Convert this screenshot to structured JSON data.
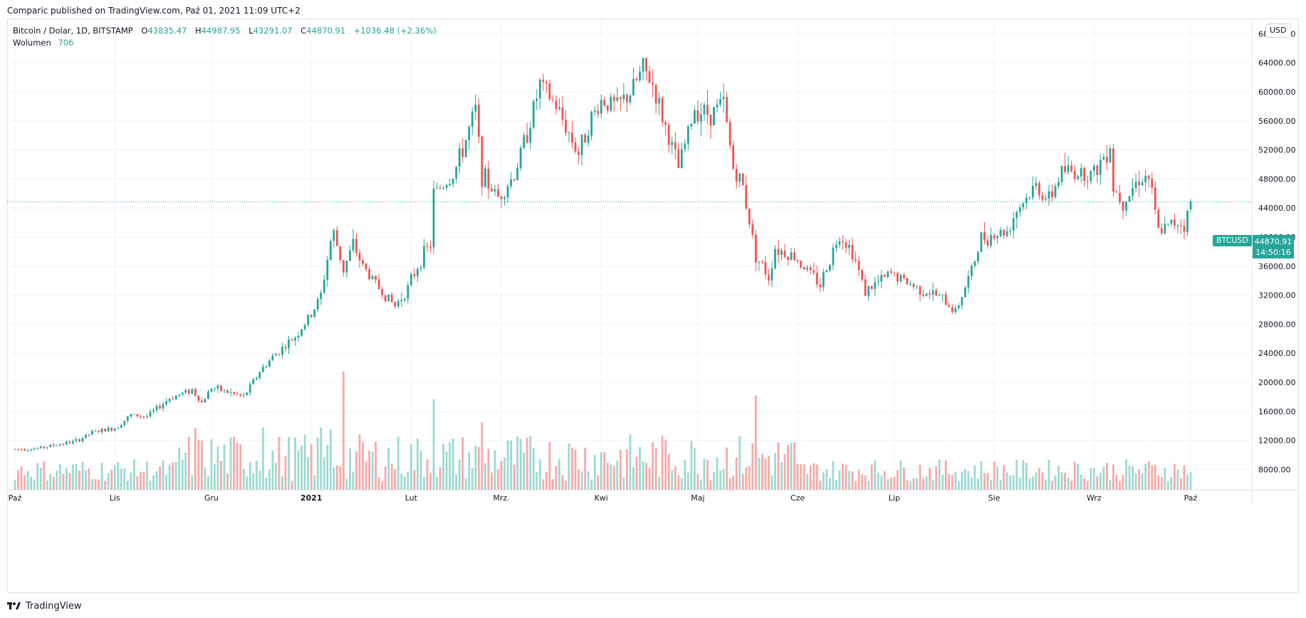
{
  "header": {
    "published": "Comparic published on TradingView.com, Paź 01, 2021 11:09 UTC+2"
  },
  "legend": {
    "symbol": "Bitcoin / Dolar, 1D, BITSTAMP",
    "o_label": "O",
    "o_value": "43835.47",
    "h_label": "H",
    "h_value": "44987.95",
    "l_label": "L",
    "l_value": "43291.07",
    "c_label": "C",
    "c_value": "44870.91",
    "change": "+1036.48 (+2.36%)",
    "volume_label": "Wolumen",
    "volume_value": "706"
  },
  "currency": "USD",
  "price_tag": {
    "symbol": "BTCUSD",
    "price": "44870.91",
    "countdown": "14:50:16"
  },
  "footer": {
    "brand": "TradingView"
  },
  "colors": {
    "up": "#26a69a",
    "down": "#ef5350",
    "up_volume": "#9cd9d1",
    "down_volume": "#f7a9a7",
    "grid": "#f0f3fa"
  },
  "chart_data": {
    "type": "candlestick",
    "symbol": "BTCUSD",
    "interval": "1D",
    "ylim": [
      5200,
      70000
    ],
    "y_ticks": [
      "68000.00",
      "64000.00",
      "60000.00",
      "56000.00",
      "52000.00",
      "48000.00",
      "44000.00",
      "40000.00",
      "36000.00",
      "32000.00",
      "28000.00",
      "24000.00",
      "20000.00",
      "16000.00",
      "12000.00",
      "8000.00"
    ],
    "x_ticks": [
      {
        "label": "Paź",
        "bold": false
      },
      {
        "label": "Lis",
        "bold": false
      },
      {
        "label": "Gru",
        "bold": false
      },
      {
        "label": "2021",
        "bold": true
      },
      {
        "label": "Lut",
        "bold": false
      },
      {
        "label": "Mrz.",
        "bold": false
      },
      {
        "label": "Kwi",
        "bold": false
      },
      {
        "label": "Maj",
        "bold": false
      },
      {
        "label": "Cze",
        "bold": false
      },
      {
        "label": "Lip",
        "bold": false
      },
      {
        "label": "Sie",
        "bold": false
      },
      {
        "label": "Wrz",
        "bold": false
      },
      {
        "label": "Paź",
        "bold": false
      }
    ],
    "last_price": 44870.91,
    "anchors": [
      [
        "2020-10-01",
        10800
      ],
      [
        "2020-10-08",
        10900
      ],
      [
        "2020-10-15",
        11500
      ],
      [
        "2020-10-20",
        11900
      ],
      [
        "2020-10-25",
        13100
      ],
      [
        "2020-11-01",
        13700
      ],
      [
        "2020-11-06",
        15500
      ],
      [
        "2020-11-11",
        15300
      ],
      [
        "2020-11-18",
        17800
      ],
      [
        "2020-11-25",
        19000
      ],
      [
        "2020-11-28",
        17200
      ],
      [
        "2020-12-01",
        19300
      ],
      [
        "2020-12-11",
        18000
      ],
      [
        "2020-12-16",
        21500
      ],
      [
        "2020-12-20",
        23500
      ],
      [
        "2020-12-27",
        26300
      ],
      [
        "2021-01-01",
        29300
      ],
      [
        "2021-01-04",
        32000
      ],
      [
        "2021-01-07",
        39500
      ],
      [
        "2021-01-08",
        40500
      ],
      [
        "2021-01-11",
        35500
      ],
      [
        "2021-01-14",
        39000
      ],
      [
        "2021-01-17",
        36000
      ],
      [
        "2021-01-22",
        33000
      ],
      [
        "2021-01-27",
        30500
      ],
      [
        "2021-01-31",
        33000
      ],
      [
        "2021-02-04",
        37000
      ],
      [
        "2021-02-07",
        39000
      ],
      [
        "2021-02-08",
        46000
      ],
      [
        "2021-02-14",
        48500
      ],
      [
        "2021-02-17",
        52000
      ],
      [
        "2021-02-21",
        57500
      ],
      [
        "2021-02-23",
        48500
      ],
      [
        "2021-02-28",
        45500
      ],
      [
        "2021-03-05",
        48500
      ],
      [
        "2021-03-10",
        56000
      ],
      [
        "2021-03-13",
        61000
      ],
      [
        "2021-03-18",
        58000
      ],
      [
        "2021-03-25",
        51500
      ],
      [
        "2021-03-28",
        55500
      ],
      [
        "2021-04-01",
        58800
      ],
      [
        "2021-04-06",
        58000
      ],
      [
        "2021-04-10",
        59800
      ],
      [
        "2021-04-14",
        63200
      ],
      [
        "2021-04-17",
        61000
      ],
      [
        "2021-04-20",
        56500
      ],
      [
        "2021-04-25",
        49500
      ],
      [
        "2021-04-30",
        57700
      ],
      [
        "2021-05-05",
        57000
      ],
      [
        "2021-05-09",
        58500
      ],
      [
        "2021-05-12",
        49500
      ],
      [
        "2021-05-15",
        47000
      ],
      [
        "2021-05-19",
        37500
      ],
      [
        "2021-05-23",
        34500
      ],
      [
        "2021-05-25",
        38500
      ],
      [
        "2021-05-31",
        37300
      ],
      [
        "2021-06-08",
        33500
      ],
      [
        "2021-06-14",
        40500
      ],
      [
        "2021-06-18",
        38000
      ],
      [
        "2021-06-22",
        32500
      ],
      [
        "2021-06-30",
        35000
      ],
      [
        "2021-07-08",
        33000
      ],
      [
        "2021-07-15",
        31800
      ],
      [
        "2021-07-20",
        29800
      ],
      [
        "2021-07-25",
        35400
      ],
      [
        "2021-07-28",
        39900
      ],
      [
        "2021-08-05",
        40800
      ],
      [
        "2021-08-08",
        43800
      ],
      [
        "2021-08-14",
        47000
      ],
      [
        "2021-08-18",
        45000
      ],
      [
        "2021-08-22",
        49200
      ],
      [
        "2021-08-27",
        48900
      ],
      [
        "2021-09-01",
        48800
      ],
      [
        "2021-09-06",
        52700
      ],
      [
        "2021-09-07",
        46800
      ],
      [
        "2021-09-10",
        44900
      ],
      [
        "2021-09-15",
        48100
      ],
      [
        "2021-09-18",
        48300
      ],
      [
        "2021-09-21",
        40700
      ],
      [
        "2021-09-27",
        42200
      ],
      [
        "2021-09-29",
        41500
      ],
      [
        "2021-10-01",
        44870.91
      ]
    ],
    "volume_spikes": [
      [
        "2021-01-11",
        21500
      ],
      [
        "2021-02-08",
        17700
      ],
      [
        "2021-05-19",
        18200
      ],
      [
        "2021-02-23",
        14500
      ],
      [
        "2021-01-04",
        13800
      ],
      [
        "2021-01-07",
        13500
      ],
      [
        "2020-11-26",
        13700
      ],
      [
        "2020-12-17",
        13800
      ]
    ]
  }
}
